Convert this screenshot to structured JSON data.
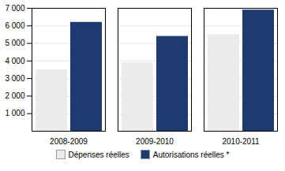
{
  "chart_data": {
    "type": "bar",
    "categories": [
      "2008-2009",
      "2009-2010",
      "2010-2011"
    ],
    "series": [
      {
        "name": "Dépenses réelles",
        "color": "#ebebeb",
        "values": [
          3500,
          3900,
          5500
        ]
      },
      {
        "name": "Autorisations réelles *",
        "color": "#1f3a6e",
        "values": [
          6200,
          5400,
          6900
        ]
      }
    ],
    "ylim": [
      0,
      7000
    ],
    "yticks": [
      {
        "value": 1000,
        "label": "1 000"
      },
      {
        "value": 2000,
        "label": "2 000"
      },
      {
        "value": 3000,
        "label": "3 000"
      },
      {
        "value": 4000,
        "label": "4 000"
      },
      {
        "value": 5000,
        "label": "5 000"
      },
      {
        "value": 6000,
        "label": "6 000"
      },
      {
        "value": 7000,
        "label": "7 000"
      }
    ],
    "grid": true,
    "legend": "bottom"
  }
}
